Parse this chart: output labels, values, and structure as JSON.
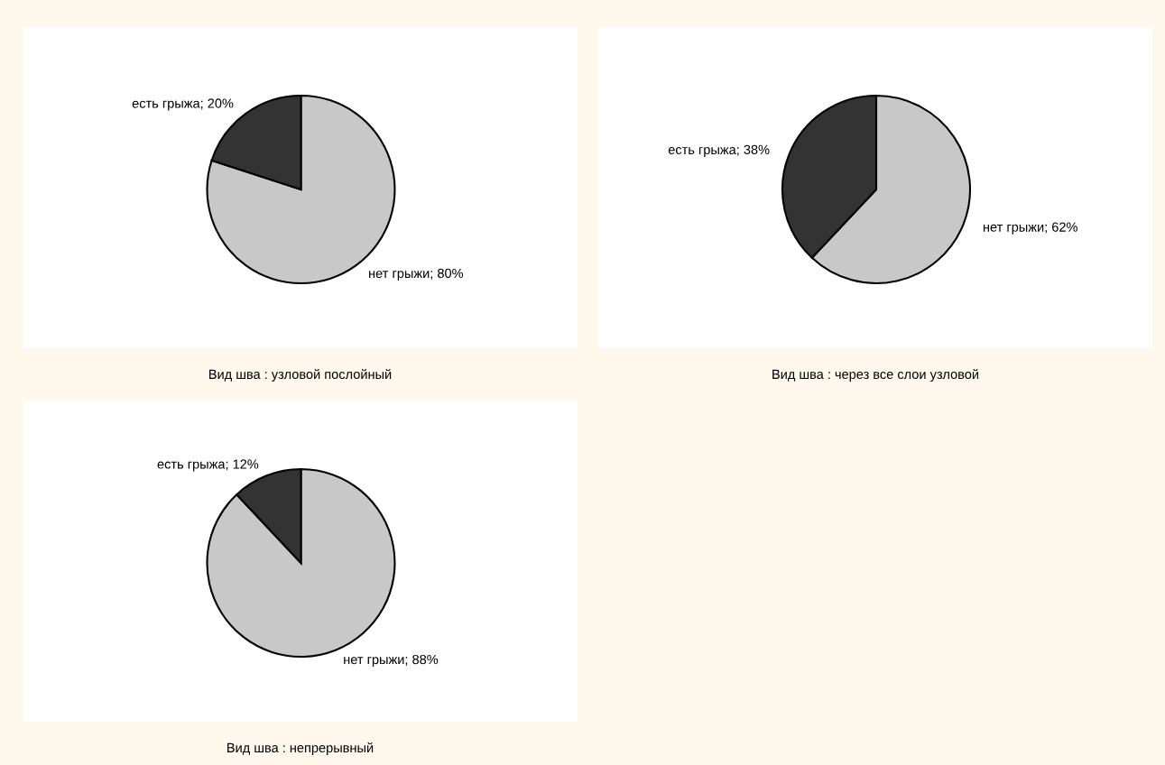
{
  "chart_data": [
    {
      "type": "pie",
      "title": "Вид шва : узловой послойный",
      "categories": [
        "нет грыжи",
        "есть грыжа"
      ],
      "values": [
        80,
        20
      ],
      "value_labels": [
        "80%",
        "20%"
      ],
      "colors": [
        "#c8c8c8",
        "#333333"
      ]
    },
    {
      "type": "pie",
      "title": "Вид шва : через все слои узловой",
      "categories": [
        "нет грыжи",
        "есть грыжа"
      ],
      "values": [
        62,
        38
      ],
      "value_labels": [
        "62%",
        "38%"
      ],
      "colors": [
        "#c8c8c8",
        "#333333"
      ]
    },
    {
      "type": "pie",
      "title": "Вид шва : непрерывный",
      "categories": [
        "нет грыжи",
        "есть грыжа"
      ],
      "values": [
        88,
        12
      ],
      "value_labels": [
        "88%",
        "12%"
      ],
      "colors": [
        "#c8c8c8",
        "#333333"
      ]
    }
  ]
}
